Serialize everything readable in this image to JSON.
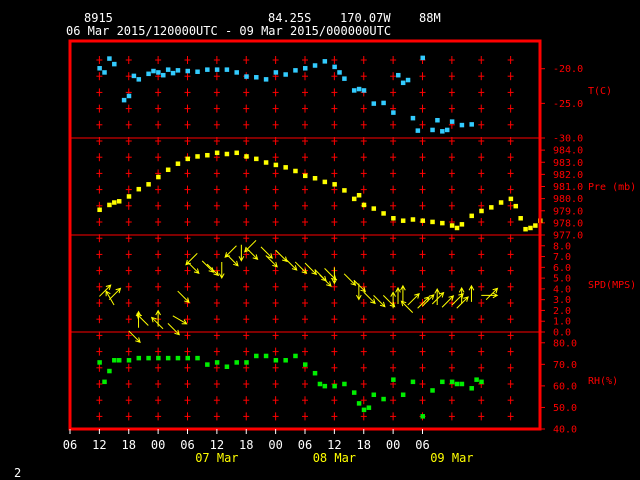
{
  "header": {
    "station": "8915",
    "lat": "84.25S",
    "lon": "170.07W",
    "elevation": "88M",
    "range": "06 Mar 2015/120000UTC - 09 Mar 2015/000000UTC",
    "page": "2"
  },
  "colors": {
    "frame": "#ff0000",
    "grid": "#ff0000",
    "text": "#ffffff",
    "temperature": "#33ccff",
    "pressure": "#ffff00",
    "wind": "#ffff00",
    "humidity": "#00ee00"
  },
  "x_axis": {
    "tick_labels": [
      "06",
      "12",
      "18",
      "00",
      "06",
      "12",
      "18",
      "00",
      "06",
      "12",
      "18",
      "00",
      "06"
    ],
    "date_labels": [
      {
        "label": "07 Mar",
        "hour": 36
      },
      {
        "label": "08 Mar",
        "hour": 60
      },
      {
        "label": "09 Mar",
        "hour": 84
      }
    ]
  },
  "chart_data": [
    {
      "type": "scatter",
      "name": "temperature",
      "ylabel": "T(C)",
      "ylim": [
        -30,
        -16
      ],
      "yticks": [
        -30,
        -25,
        -20
      ],
      "ytick_labels": [
        "-30.0",
        "-25.0",
        "-20.0"
      ],
      "x_unit": "hours since 06 Mar 2015 00UTC",
      "points": [
        [
          12,
          -19.9
        ],
        [
          13,
          -20.5
        ],
        [
          14,
          -18.5
        ],
        [
          15,
          -19.3
        ],
        [
          17,
          -24.5
        ],
        [
          18,
          -23.9
        ],
        [
          19,
          -21.0
        ],
        [
          20,
          -21.5
        ],
        [
          22,
          -20.7
        ],
        [
          23,
          -20.3
        ],
        [
          24,
          -20.5
        ],
        [
          25,
          -20.9
        ],
        [
          26,
          -20.1
        ],
        [
          27,
          -20.6
        ],
        [
          28,
          -20.2
        ],
        [
          30,
          -20.3
        ],
        [
          32,
          -20.4
        ],
        [
          34,
          -20.1
        ],
        [
          36,
          -20.1
        ],
        [
          38,
          -20.1
        ],
        [
          40,
          -20.5
        ],
        [
          42,
          -21.1
        ],
        [
          44,
          -21.2
        ],
        [
          46,
          -21.5
        ],
        [
          48,
          -20.5
        ],
        [
          50,
          -20.8
        ],
        [
          52,
          -20.2
        ],
        [
          54,
          -19.9
        ],
        [
          56,
          -19.5
        ],
        [
          58,
          -18.9
        ],
        [
          60,
          -19.7
        ],
        [
          61,
          -20.5
        ],
        [
          62,
          -21.4
        ],
        [
          64,
          -23.1
        ],
        [
          65,
          -22.9
        ],
        [
          66,
          -23.1
        ],
        [
          68,
          -25.0
        ],
        [
          70,
          -24.9
        ],
        [
          72,
          -26.3
        ],
        [
          73,
          -20.9
        ],
        [
          74,
          -22.0
        ],
        [
          75,
          -21.6
        ],
        [
          76,
          -27.1
        ],
        [
          77,
          -28.9
        ],
        [
          78,
          -18.4
        ],
        [
          80,
          -28.8
        ],
        [
          81,
          -27.4
        ],
        [
          82,
          -29.0
        ],
        [
          83,
          -28.8
        ],
        [
          84,
          -27.6
        ],
        [
          86,
          -28.1
        ],
        [
          88,
          -28.0
        ]
      ]
    },
    {
      "type": "scatter",
      "name": "pressure",
      "ylabel": "Pre (mb)",
      "ylim": [
        977,
        985
      ],
      "yticks": [
        977,
        978,
        979,
        980,
        981,
        982,
        983,
        984
      ],
      "ytick_labels": [
        "977.0",
        "978.0",
        "979.0",
        "980.0",
        "981.0",
        "982.0",
        "983.0",
        "984.0"
      ],
      "points": [
        [
          12,
          979.1
        ],
        [
          14,
          979.5
        ],
        [
          15,
          979.7
        ],
        [
          16,
          979.8
        ],
        [
          18,
          980.2
        ],
        [
          20,
          980.8
        ],
        [
          22,
          981.2
        ],
        [
          24,
          981.8
        ],
        [
          26,
          982.4
        ],
        [
          28,
          982.9
        ],
        [
          30,
          983.3
        ],
        [
          32,
          983.5
        ],
        [
          34,
          983.6
        ],
        [
          36,
          983.8
        ],
        [
          38,
          983.7
        ],
        [
          40,
          983.8
        ],
        [
          42,
          983.5
        ],
        [
          44,
          983.3
        ],
        [
          46,
          983.0
        ],
        [
          48,
          982.8
        ],
        [
          50,
          982.6
        ],
        [
          52,
          982.3
        ],
        [
          54,
          981.9
        ],
        [
          56,
          981.7
        ],
        [
          58,
          981.4
        ],
        [
          60,
          981.2
        ],
        [
          62,
          980.7
        ],
        [
          64,
          980.0
        ],
        [
          65,
          980.3
        ],
        [
          66,
          979.5
        ],
        [
          68,
          979.2
        ],
        [
          70,
          978.8
        ],
        [
          72,
          978.4
        ],
        [
          74,
          978.2
        ],
        [
          76,
          978.3
        ],
        [
          78,
          978.2
        ],
        [
          80,
          978.1
        ],
        [
          82,
          978.0
        ],
        [
          84,
          977.8
        ],
        [
          85,
          977.6
        ],
        [
          86,
          977.9
        ],
        [
          88,
          978.6
        ],
        [
          90,
          979.0
        ],
        [
          92,
          979.3
        ],
        [
          94,
          979.7
        ],
        [
          96,
          980.0
        ],
        [
          97,
          979.4
        ],
        [
          98,
          978.4
        ],
        [
          99,
          977.5
        ],
        [
          100,
          977.6
        ],
        [
          101,
          977.8
        ],
        [
          102,
          978.2
        ]
      ]
    },
    {
      "type": "scatter",
      "name": "wind",
      "ylabel": "SPD(MPS)",
      "ylim": [
        0,
        9
      ],
      "yticks": [
        0,
        1,
        2,
        3,
        4,
        5,
        6,
        7,
        8
      ],
      "ytick_labels": [
        "0.0",
        "1.0",
        "2.0",
        "3.0",
        "4.0",
        "5.0",
        "6.0",
        "7.0",
        "8.0"
      ],
      "points": [
        [
          12,
          3.3,
          45
        ],
        [
          14,
          3.0,
          45
        ],
        [
          15,
          2.5,
          120
        ],
        [
          18,
          0.1,
          315
        ],
        [
          20,
          0.4,
          90
        ],
        [
          22,
          0.6,
          135
        ],
        [
          24,
          0.5,
          90
        ],
        [
          25,
          0.3,
          135
        ],
        [
          26,
          0.8,
          315
        ],
        [
          27,
          1.5,
          330
        ],
        [
          28,
          3.8,
          315
        ],
        [
          30,
          6.5,
          315
        ],
        [
          32,
          7.3,
          225
        ],
        [
          33,
          6.6,
          315
        ],
        [
          34,
          6.3,
          315
        ],
        [
          37,
          6.5,
          270
        ],
        [
          38,
          7.2,
          315
        ],
        [
          40,
          8.0,
          225
        ],
        [
          41,
          8.1,
          270
        ],
        [
          42,
          7.8,
          315
        ],
        [
          44,
          8.5,
          225
        ],
        [
          45,
          7.9,
          315
        ],
        [
          46,
          7.1,
          315
        ],
        [
          48,
          7.6,
          315
        ],
        [
          50,
          6.8,
          315
        ],
        [
          52,
          6.5,
          315
        ],
        [
          54,
          6.4,
          315
        ],
        [
          56,
          5.8,
          315
        ],
        [
          57,
          5.3,
          315
        ],
        [
          58,
          5.9,
          315
        ],
        [
          60,
          6.0,
          270
        ],
        [
          62,
          5.4,
          315
        ],
        [
          64,
          4.8,
          315
        ],
        [
          65,
          4.5,
          270
        ],
        [
          66,
          3.7,
          315
        ],
        [
          68,
          3.4,
          315
        ],
        [
          70,
          3.4,
          315
        ],
        [
          72,
          2.2,
          90
        ],
        [
          73,
          2.6,
          90
        ],
        [
          74,
          2.8,
          90
        ],
        [
          75,
          2.5,
          45
        ],
        [
          76,
          1.8,
          135
        ],
        [
          77,
          2.2,
          45
        ],
        [
          78,
          2.4,
          45
        ],
        [
          80,
          2.6,
          45
        ],
        [
          81,
          2.5,
          90
        ],
        [
          82,
          2.3,
          45
        ],
        [
          84,
          2.5,
          45
        ],
        [
          85,
          2.2,
          45
        ],
        [
          86,
          2.6,
          90
        ],
        [
          88,
          2.8,
          90
        ],
        [
          90,
          3.4,
          0
        ],
        [
          91,
          3.0,
          45
        ]
      ]
    },
    {
      "type": "scatter",
      "name": "humidity",
      "ylabel": "RH(%)",
      "ylim": [
        40,
        85
      ],
      "yticks": [
        40,
        50,
        60,
        70,
        80
      ],
      "ytick_labels": [
        "40.0",
        "50.0",
        "60.0",
        "70.0",
        "80.0"
      ],
      "points": [
        [
          12,
          71
        ],
        [
          13,
          62
        ],
        [
          14,
          67
        ],
        [
          15,
          72
        ],
        [
          16,
          72
        ],
        [
          18,
          72
        ],
        [
          20,
          73
        ],
        [
          22,
          73
        ],
        [
          24,
          73
        ],
        [
          26,
          73
        ],
        [
          28,
          73
        ],
        [
          30,
          73
        ],
        [
          32,
          73
        ],
        [
          34,
          70
        ],
        [
          36,
          71
        ],
        [
          38,
          69
        ],
        [
          40,
          71
        ],
        [
          42,
          71
        ],
        [
          44,
          74
        ],
        [
          46,
          74
        ],
        [
          48,
          72
        ],
        [
          50,
          72
        ],
        [
          52,
          74
        ],
        [
          54,
          70
        ],
        [
          56,
          66
        ],
        [
          57,
          61
        ],
        [
          58,
          60
        ],
        [
          60,
          60
        ],
        [
          62,
          61
        ],
        [
          64,
          57
        ],
        [
          65,
          52
        ],
        [
          66,
          49
        ],
        [
          67,
          50
        ],
        [
          68,
          56
        ],
        [
          70,
          54
        ],
        [
          72,
          63
        ],
        [
          74,
          56
        ],
        [
          76,
          62
        ],
        [
          78,
          46
        ],
        [
          80,
          58
        ],
        [
          82,
          62
        ],
        [
          84,
          62
        ],
        [
          85,
          61
        ],
        [
          86,
          61
        ],
        [
          88,
          59
        ],
        [
          89,
          63
        ],
        [
          90,
          62
        ]
      ]
    }
  ]
}
